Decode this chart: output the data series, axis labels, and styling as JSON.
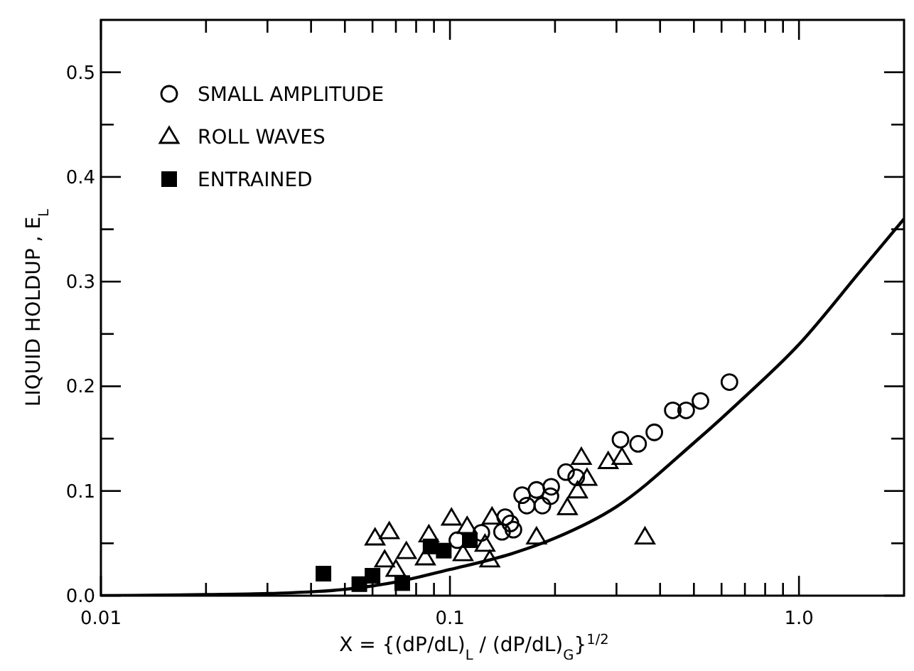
{
  "chart_data": {
    "type": "scatter",
    "xlabel": "X = {(dP/dL)$_{L}$ / (dP/dL)$_{G}$}$^{1/2}$",
    "ylabel": "LIQUID HOLDUP , E$_{L}$",
    "log": "x",
    "xlim": [
      0.01,
      2.0
    ],
    "ylim": [
      0,
      0.55
    ],
    "xticks": [
      {
        "value": 0.01,
        "label": "0.01"
      },
      {
        "value": 0.02,
        "label": null
      },
      {
        "value": 0.03,
        "label": null
      },
      {
        "value": 0.04,
        "label": null
      },
      {
        "value": 0.05,
        "label": null
      },
      {
        "value": 0.06,
        "label": null
      },
      {
        "value": 0.07,
        "label": null
      },
      {
        "value": 0.08,
        "label": null
      },
      {
        "value": 0.09,
        "label": null
      },
      {
        "value": 0.1,
        "label": "0.1"
      },
      {
        "value": 0.2,
        "label": null
      },
      {
        "value": 0.3,
        "label": null
      },
      {
        "value": 0.4,
        "label": null
      },
      {
        "value": 0.5,
        "label": null
      },
      {
        "value": 0.6,
        "label": null
      },
      {
        "value": 0.7,
        "label": null
      },
      {
        "value": 0.8,
        "label": null
      },
      {
        "value": 0.9,
        "label": null
      },
      {
        "value": 1,
        "label": "1.0"
      }
    ],
    "yticks": [
      {
        "value": 0,
        "label": "0.0"
      },
      {
        "value": 0.05,
        "label": null
      },
      {
        "value": 0.1,
        "label": "0.1"
      },
      {
        "value": 0.15,
        "label": null
      },
      {
        "value": 0.2,
        "label": "0.2"
      },
      {
        "value": 0.25,
        "label": null
      },
      {
        "value": 0.3,
        "label": "0.3"
      },
      {
        "value": 0.35,
        "label": null
      },
      {
        "value": 0.4,
        "label": "0.4"
      },
      {
        "value": 0.45,
        "label": null
      },
      {
        "value": 0.5,
        "label": "0.5"
      }
    ],
    "grid": false,
    "legend": "top left",
    "series": [
      {
        "name": "SMALL AMPLITUDE",
        "color": "#000000",
        "marker": "circle",
        "x": [
          0.632,
          0.435,
          0.475,
          0.522,
          0.385,
          0.346,
          0.308,
          0.23,
          0.215,
          0.195,
          0.177,
          0.161,
          0.166,
          0.184,
          0.194,
          0.144,
          0.149,
          0.152,
          0.141,
          0.123,
          0.105
        ],
        "values": [
          0.204,
          0.177,
          0.177,
          0.186,
          0.156,
          0.145,
          0.149,
          0.113,
          0.118,
          0.104,
          0.101,
          0.096,
          0.086,
          0.086,
          0.095,
          0.075,
          0.069,
          0.063,
          0.061,
          0.06,
          0.053
        ]
      },
      {
        "name": "ROLL WAVES",
        "color": "#000000",
        "marker": "triangle",
        "x": [
          0.238,
          0.247,
          0.232,
          0.217,
          0.284,
          0.311,
          0.362,
          0.177,
          0.132,
          0.126,
          0.13,
          0.112,
          0.101,
          0.109,
          0.087,
          0.085,
          0.075,
          0.067,
          0.061,
          0.065,
          0.07
        ],
        "values": [
          0.132,
          0.112,
          0.1,
          0.084,
          0.128,
          0.132,
          0.056,
          0.056,
          0.075,
          0.049,
          0.034,
          0.066,
          0.074,
          0.04,
          0.058,
          0.036,
          0.042,
          0.061,
          0.055,
          0.034,
          0.025
        ]
      },
      {
        "name": "ENTRAINED",
        "color": "#000000",
        "marker": "square",
        "x": [
          0.0434,
          0.055,
          0.06,
          0.073,
          0.088,
          0.096,
          0.114
        ],
        "values": [
          0.021,
          0.011,
          0.019,
          0.012,
          0.047,
          0.043,
          0.053
        ]
      },
      {
        "type": "line",
        "color": "#000000",
        "marker": "none",
        "line_style": "solid",
        "x": [
          0.01,
          0.02,
          0.03,
          0.05,
          0.07,
          0.1,
          0.15,
          0.2,
          0.3,
          0.5,
          0.7,
          1.0,
          1.5,
          2.0
        ],
        "values": [
          0,
          0.001,
          0.002,
          0.006,
          0.013,
          0.025,
          0.04,
          0.055,
          0.085,
          0.146,
          0.19,
          0.24,
          0.31,
          0.36
        ]
      }
    ]
  }
}
